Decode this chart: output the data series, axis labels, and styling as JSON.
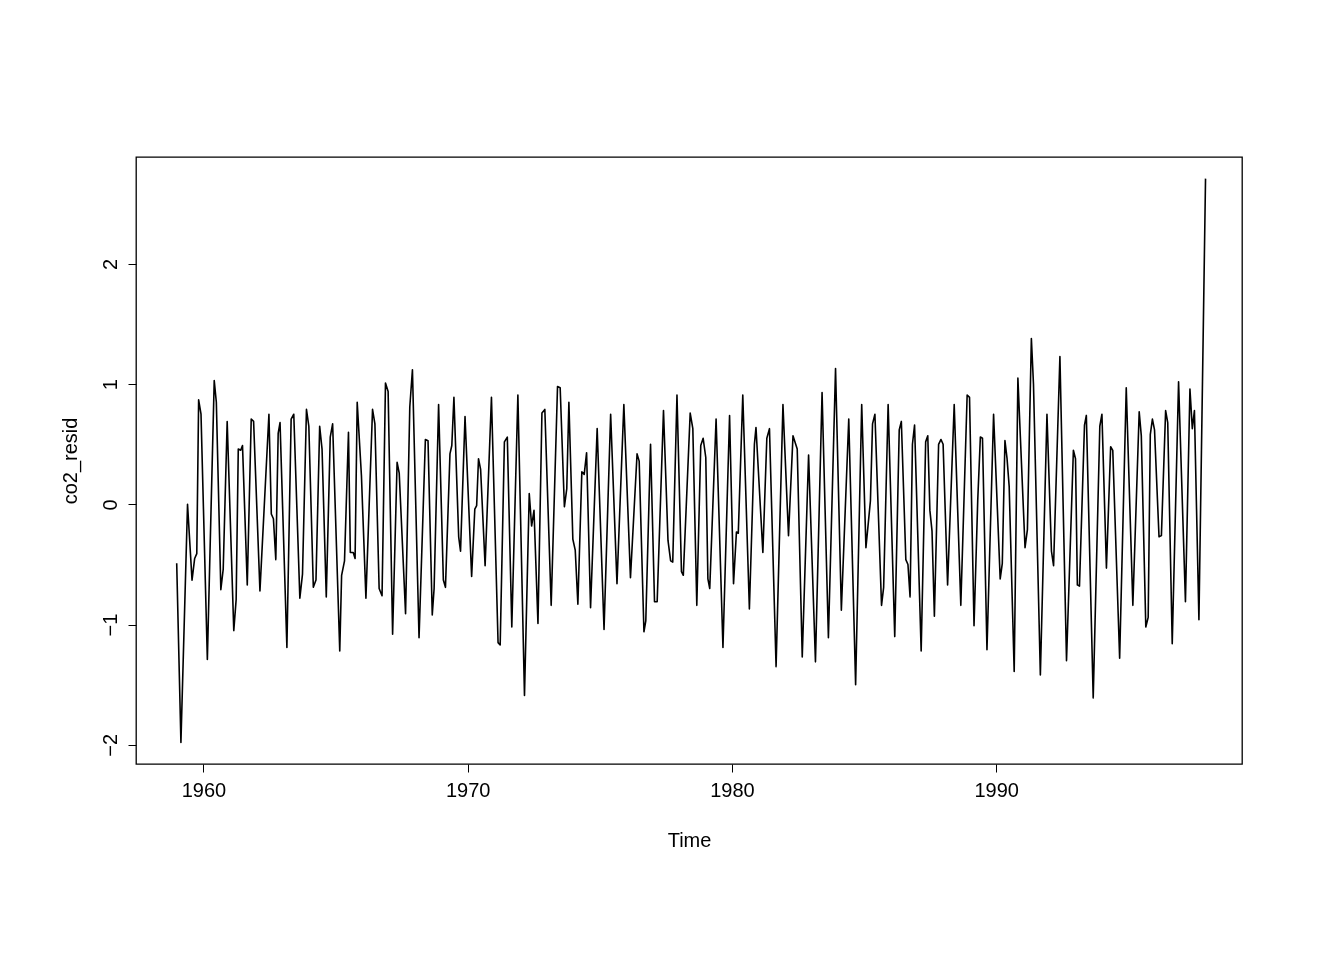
{
  "chart_data": {
    "type": "line",
    "xlabel": "Time",
    "ylabel": "co2_resid",
    "color": "#000000",
    "xlim": [
      1957.45,
      1999.3
    ],
    "ylim": [
      -2.16,
      2.89
    ],
    "xticks": [
      1960,
      1970,
      1980,
      1990
    ],
    "yticks": [
      -2,
      -1,
      0,
      1,
      2
    ],
    "x": [
      1958.99,
      1959.15,
      1959.4,
      1959.57,
      1959.67,
      1959.75,
      1959.82,
      1959.91,
      1960.15,
      1960.41,
      1960.49,
      1960.66,
      1960.75,
      1960.9,
      1961.15,
      1961.24,
      1961.32,
      1961.41,
      1961.48,
      1961.66,
      1961.81,
      1961.9,
      1962.14,
      1962.48,
      1962.57,
      1962.65,
      1962.74,
      1962.83,
      1962.9,
      1963.16,
      1963.32,
      1963.42,
      1963.65,
      1963.75,
      1963.9,
      1963.99,
      1964.16,
      1964.26,
      1964.4,
      1964.49,
      1964.65,
      1964.8,
      1964.89,
      1965.16,
      1965.23,
      1965.34,
      1965.49,
      1965.56,
      1965.67,
      1965.74,
      1965.82,
      1965.98,
      1966.15,
      1966.4,
      1966.49,
      1966.65,
      1966.76,
      1966.89,
      1966.99,
      1967.16,
      1967.33,
      1967.41,
      1967.65,
      1967.81,
      1967.91,
      1968.16,
      1968.4,
      1968.5,
      1968.66,
      1968.73,
      1968.9,
      1969.08,
      1969.16,
      1969.33,
      1969.4,
      1969.48,
      1969.66,
      1969.73,
      1969.9,
      1970.15,
      1970.27,
      1970.34,
      1970.41,
      1970.49,
      1970.66,
      1970.9,
      1971.15,
      1971.23,
      1971.39,
      1971.5,
      1971.67,
      1971.9,
      1972.15,
      1972.33,
      1972.42,
      1972.51,
      1972.66,
      1972.81,
      1972.92,
      1973.16,
      1973.4,
      1973.5,
      1973.66,
      1973.75,
      1973.83,
      1973.98,
      1974.07,
      1974.17,
      1974.32,
      1974.41,
      1974.5,
      1974.65,
      1974.9,
      1975.16,
      1975.41,
      1975.65,
      1975.91,
      1976.16,
      1976.41,
      1976.49,
      1976.67,
      1976.74,
      1976.92,
      1977.07,
      1977.17,
      1977.41,
      1977.58,
      1977.68,
      1977.76,
      1977.92,
      1978.09,
      1978.16,
      1978.42,
      1978.52,
      1978.67,
      1978.82,
      1978.91,
      1979.01,
      1979.09,
      1979.16,
      1979.4,
      1979.66,
      1979.91,
      1980.06,
      1980.17,
      1980.24,
      1980.41,
      1980.66,
      1980.85,
      1980.91,
      1981.17,
      1981.32,
      1981.42,
      1981.67,
      1981.93,
      1982.14,
      1982.31,
      1982.47,
      1982.66,
      1982.9,
      1983.16,
      1983.41,
      1983.65,
      1983.92,
      1984.14,
      1984.42,
      1984.68,
      1984.91,
      1985.07,
      1985.24,
      1985.32,
      1985.41,
      1985.66,
      1985.74,
      1985.91,
      1986.16,
      1986.33,
      1986.41,
      1986.58,
      1986.66,
      1986.74,
      1986.83,
      1986.91,
      1987.16,
      1987.33,
      1987.41,
      1987.49,
      1987.57,
      1987.66,
      1987.82,
      1987.91,
      1987.99,
      1988.16,
      1988.41,
      1988.66,
      1988.9,
      1988.99,
      1989.16,
      1989.3,
      1989.4,
      1989.48,
      1989.65,
      1989.9,
      1990.15,
      1990.23,
      1990.33,
      1990.41,
      1990.49,
      1990.68,
      1990.82,
      1991.09,
      1991.18,
      1991.33,
      1991.41,
      1991.67,
      1991.92,
      1992.09,
      1992.17,
      1992.41,
      1992.66,
      1992.92,
      1993.0,
      1993.07,
      1993.15,
      1993.34,
      1993.41,
      1993.67,
      1993.92,
      1994.0,
      1994.17,
      1994.33,
      1994.41,
      1994.67,
      1994.92,
      1995.17,
      1995.41,
      1995.49,
      1995.66,
      1995.75,
      1995.83,
      1995.91,
      1995.99,
      1996.16,
      1996.25,
      1996.41,
      1996.49,
      1996.66,
      1996.9,
      1997.16,
      1997.33,
      1997.42,
      1997.5,
      1997.67,
      1997.92
    ],
    "values": [
      -0.49,
      -1.98,
      0.0,
      -0.63,
      -0.45,
      -0.41,
      0.87,
      0.75,
      -1.29,
      1.03,
      0.85,
      -0.71,
      -0.54,
      0.69,
      -1.05,
      -0.79,
      0.46,
      0.45,
      0.49,
      -0.67,
      0.71,
      0.69,
      -0.72,
      0.75,
      -0.08,
      -0.12,
      -0.46,
      0.59,
      0.68,
      -1.19,
      0.71,
      0.75,
      -0.78,
      -0.58,
      0.79,
      0.65,
      -0.69,
      -0.63,
      0.65,
      0.46,
      -0.77,
      0.56,
      0.67,
      -1.22,
      -0.59,
      -0.47,
      0.6,
      -0.4,
      -0.4,
      -0.45,
      0.85,
      0.24,
      -0.78,
      0.79,
      0.67,
      -0.7,
      -0.76,
      1.01,
      0.94,
      -1.08,
      0.35,
      0.26,
      -0.91,
      0.81,
      1.12,
      -1.11,
      0.54,
      0.53,
      -0.92,
      -0.7,
      0.83,
      -0.63,
      -0.69,
      0.42,
      0.49,
      0.89,
      -0.27,
      -0.39,
      0.73,
      -0.6,
      -0.04,
      -0.01,
      0.38,
      0.29,
      -0.51,
      0.89,
      -1.15,
      -1.17,
      0.52,
      0.56,
      -1.02,
      0.91,
      -1.59,
      0.09,
      -0.18,
      -0.05,
      -0.99,
      0.76,
      0.79,
      -0.84,
      0.98,
      0.97,
      -0.02,
      0.13,
      0.85,
      -0.29,
      -0.38,
      -0.83,
      0.27,
      0.25,
      0.43,
      -0.86,
      0.63,
      -1.04,
      0.75,
      -0.66,
      0.83,
      -0.61,
      0.42,
      0.36,
      -1.06,
      -0.97,
      0.5,
      -0.81,
      -0.81,
      0.78,
      -0.3,
      -0.47,
      -0.48,
      0.91,
      -0.56,
      -0.59,
      0.76,
      0.63,
      -0.84,
      0.49,
      0.55,
      0.39,
      -0.62,
      -0.7,
      0.71,
      -1.19,
      0.74,
      -0.66,
      -0.23,
      -0.24,
      0.91,
      -0.87,
      0.5,
      0.64,
      -0.4,
      0.55,
      0.63,
      -1.35,
      0.83,
      -0.26,
      0.57,
      0.46,
      -1.27,
      0.41,
      -1.31,
      0.93,
      -1.11,
      1.13,
      -0.88,
      0.71,
      -1.5,
      0.83,
      -0.36,
      0.03,
      0.67,
      0.75,
      -0.84,
      -0.69,
      0.83,
      -1.1,
      0.62,
      0.69,
      -0.46,
      -0.5,
      -0.77,
      0.5,
      0.66,
      -1.22,
      0.52,
      0.57,
      -0.05,
      -0.22,
      -0.93,
      0.5,
      0.54,
      0.5,
      -0.67,
      0.83,
      -0.84,
      0.91,
      0.89,
      -1.01,
      0.03,
      0.56,
      0.55,
      -1.21,
      0.75,
      -0.62,
      -0.49,
      0.53,
      0.38,
      0.15,
      -1.39,
      1.05,
      -0.36,
      -0.21,
      1.38,
      1.0,
      -1.42,
      0.75,
      -0.39,
      -0.51,
      1.23,
      -1.3,
      0.45,
      0.38,
      -0.67,
      -0.68,
      0.66,
      0.74,
      -1.61,
      0.65,
      0.75,
      -0.53,
      0.48,
      0.45,
      -1.28,
      0.97,
      -0.84,
      0.77,
      0.57,
      -1.02,
      -0.94,
      0.58,
      0.71,
      0.62,
      -0.27,
      -0.26,
      0.78,
      0.68,
      -1.16,
      1.02,
      -0.81,
      0.96,
      0.63,
      0.78,
      -0.96,
      2.71
    ]
  }
}
